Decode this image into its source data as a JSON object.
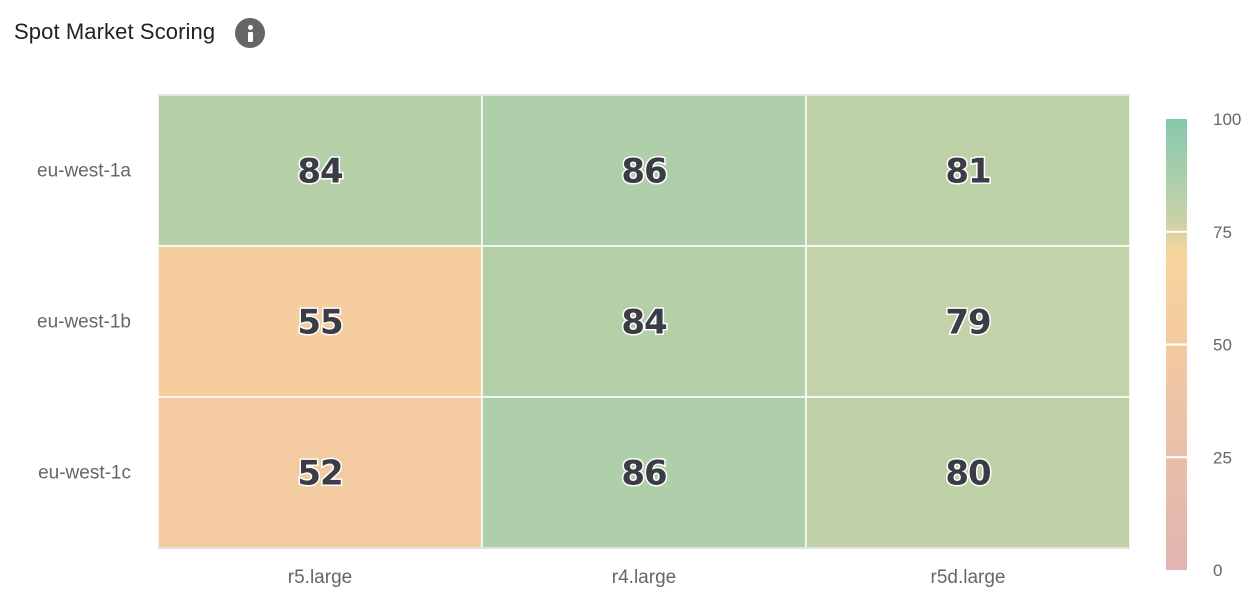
{
  "header": {
    "title": "Spot Market Scoring",
    "info_icon": "info-icon"
  },
  "chart_data": {
    "type": "heatmap",
    "title": "Spot Market Scoring",
    "x_categories": [
      "r5.large",
      "r4.large",
      "r5d.large"
    ],
    "y_categories": [
      "eu-west-1a",
      "eu-west-1b",
      "eu-west-1c"
    ],
    "values": [
      [
        84,
        86,
        81
      ],
      [
        55,
        84,
        79
      ],
      [
        52,
        86,
        80
      ]
    ],
    "color_scale": {
      "min": 0,
      "max": 100,
      "ticks": [
        100,
        75,
        50,
        25,
        0
      ],
      "stops": [
        {
          "value": 0,
          "color": "#e0b4b1"
        },
        {
          "value": 25,
          "color": "#e9bfa9"
        },
        {
          "value": 50,
          "color": "#f3caa0"
        },
        {
          "value": 70,
          "color": "#f9d49c"
        },
        {
          "value": 78,
          "color": "#c6d2a8"
        },
        {
          "value": 100,
          "color": "#86c8ad"
        }
      ]
    },
    "grid": false,
    "legend": "right"
  }
}
